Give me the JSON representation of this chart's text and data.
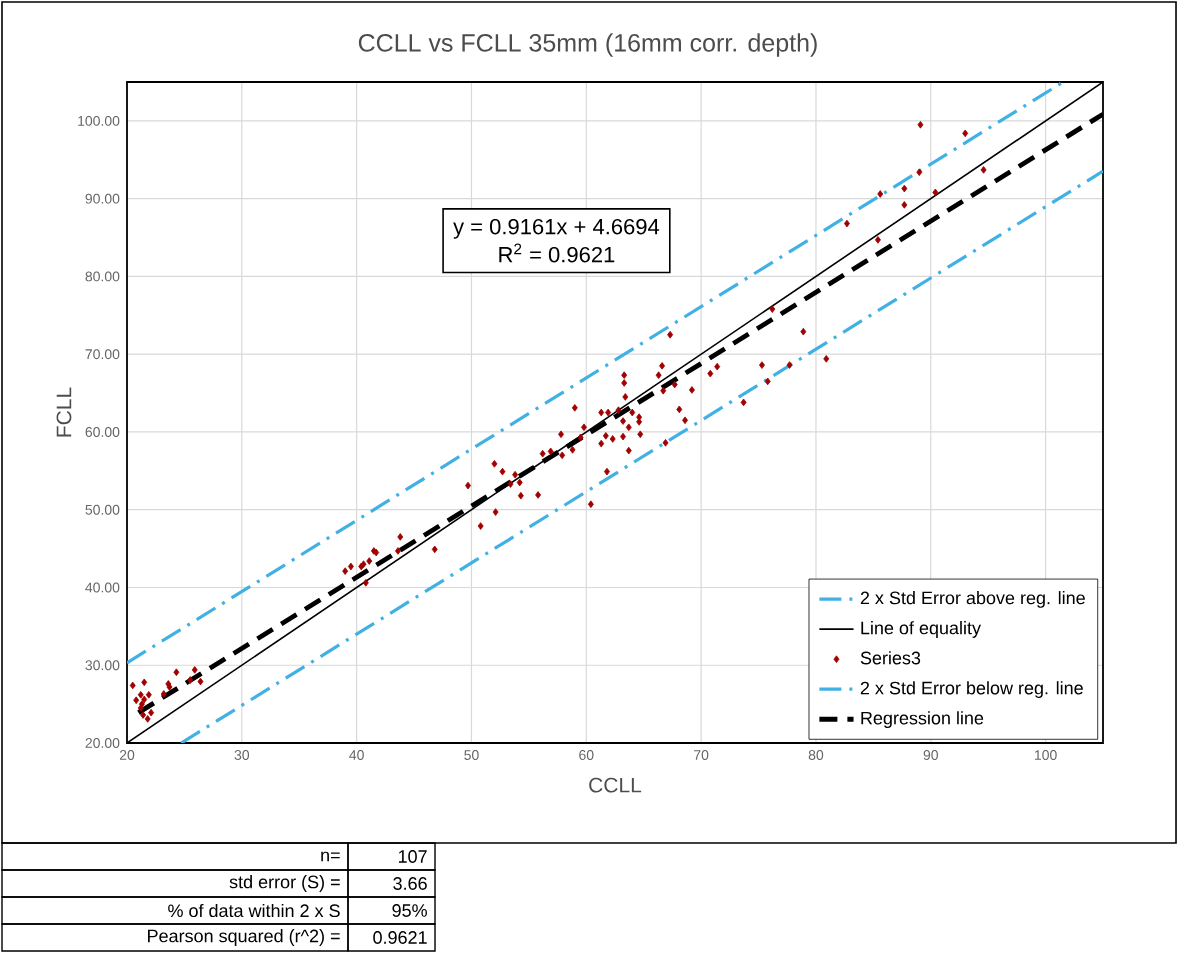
{
  "chart_data": {
    "type": "scatter",
    "title": "CCLL vs FCLL 35mm (16mm corr. depth)",
    "xlabel": "CCLL",
    "ylabel": "FCLL",
    "xlim": [
      20,
      105
    ],
    "ylim": [
      20,
      105
    ],
    "xticks": [
      20,
      30,
      40,
      50,
      60,
      70,
      80,
      90,
      100
    ],
    "yticks": [
      {
        "value": 20,
        "label": "20.00"
      },
      {
        "value": 30,
        "label": "30.00"
      },
      {
        "value": 40,
        "label": "40.00"
      },
      {
        "value": 50,
        "label": "50.00"
      },
      {
        "value": 60,
        "label": "60.00"
      },
      {
        "value": 70,
        "label": "70.00"
      },
      {
        "value": 80,
        "label": "80.00"
      },
      {
        "value": 90,
        "label": "90.00"
      },
      {
        "value": 100,
        "label": "100.00"
      }
    ],
    "grid": true,
    "legend": "bottom right",
    "series": [
      {
        "name": "2 x Std Error above reg. line",
        "type": "line",
        "color": "#41b0e4",
        "line_style": "dashdot",
        "marker": "none",
        "x": [
          20,
          101.5
        ],
        "values": [
          30.31,
          104.97
        ]
      },
      {
        "name": "Line of equality",
        "type": "line",
        "color": "#000000",
        "line_style": "solid",
        "marker": "none",
        "x": [
          20,
          105
        ],
        "values": [
          20,
          105
        ]
      },
      {
        "name": "Series3",
        "color": "#a00000",
        "marker": "diamond",
        "x": [
          20.5,
          21.5,
          21.2,
          21.9,
          20.8,
          21.5,
          21.3,
          22.1,
          21.4,
          21.8,
          21.2,
          23.2,
          23.6,
          23.7,
          24.3,
          25.5,
          25.9,
          26.4,
          39.0,
          39.5,
          40.4,
          40.6,
          41.1,
          40.8,
          41.5,
          41.7,
          43.6,
          43.8,
          46.8,
          50.8,
          52.1,
          49.7,
          52.0,
          52.7,
          53.8,
          54.2,
          53.4,
          54.3,
          55.8,
          56.2,
          56.9,
          57.9,
          58.8,
          57.8,
          59.5,
          59.8,
          60.4,
          61.8,
          59.0,
          61.3,
          61.9,
          62.8,
          64.0,
          63.2,
          64.6,
          64.6,
          63.7,
          64.7,
          63.2,
          62.3,
          61.7,
          61.3,
          63.7,
          63.3,
          63.3,
          63.4,
          66.6,
          66.3,
          66.7,
          67.7,
          69.2,
          70.8,
          71.4,
          75.3,
          75.8,
          73.7,
          68.1,
          68.6,
          66.9,
          67.3,
          76.2,
          78.9,
          77.7,
          80.9,
          82.7,
          85.4,
          85.6,
          87.7,
          87.7,
          89.0,
          89.1,
          90.4,
          93.0,
          94.6
        ],
        "values": [
          27.4,
          27.8,
          26.2,
          26.2,
          25.5,
          25.6,
          25.0,
          23.9,
          23.6,
          23.1,
          24.5,
          26.3,
          27.6,
          27.2,
          29.1,
          28.1,
          29.4,
          27.9,
          42.1,
          42.7,
          42.7,
          43.0,
          43.4,
          40.6,
          44.7,
          44.5,
          44.7,
          46.5,
          44.9,
          47.9,
          49.7,
          53.1,
          55.9,
          54.9,
          54.5,
          53.5,
          53.3,
          51.8,
          51.9,
          57.2,
          57.5,
          57.0,
          57.7,
          59.7,
          59.3,
          60.6,
          50.7,
          54.9,
          63.1,
          62.5,
          62.5,
          62.8,
          62.5,
          61.4,
          61.9,
          61.3,
          60.6,
          59.7,
          59.4,
          59.1,
          59.5,
          58.5,
          57.6,
          67.3,
          66.3,
          64.5,
          68.5,
          67.3,
          65.3,
          66.1,
          65.4,
          67.5,
          68.4,
          68.6,
          66.5,
          63.8,
          62.9,
          61.5,
          58.6,
          72.5,
          75.8,
          72.9,
          68.6,
          69.4,
          86.8,
          84.7,
          90.6,
          91.3,
          89.2,
          93.4,
          99.5,
          90.8,
          98.4,
          93.7
        ]
      },
      {
        "name": "2 x Std Error below reg. line",
        "type": "line",
        "color": "#41b0e4",
        "line_style": "dashdot",
        "marker": "none",
        "x": [
          24.72,
          105
        ],
        "values": [
          20.0,
          93.54
        ]
      },
      {
        "name": "Regression line",
        "type": "line",
        "color": "#000000",
        "line_style": "dashed",
        "marker": "none",
        "x": [
          21,
          105
        ],
        "values": [
          23.91,
          100.86
        ]
      }
    ],
    "annotations": [
      "y = 0.9161x + 4.6694",
      "R$^{2}$ = 0.9621",
      "n=",
      "107",
      "std error (S)  =",
      "3.66",
      "% of data within 2 x S",
      "95%",
      "Pearson squared (r^2) =",
      "0.9621"
    ]
  }
}
